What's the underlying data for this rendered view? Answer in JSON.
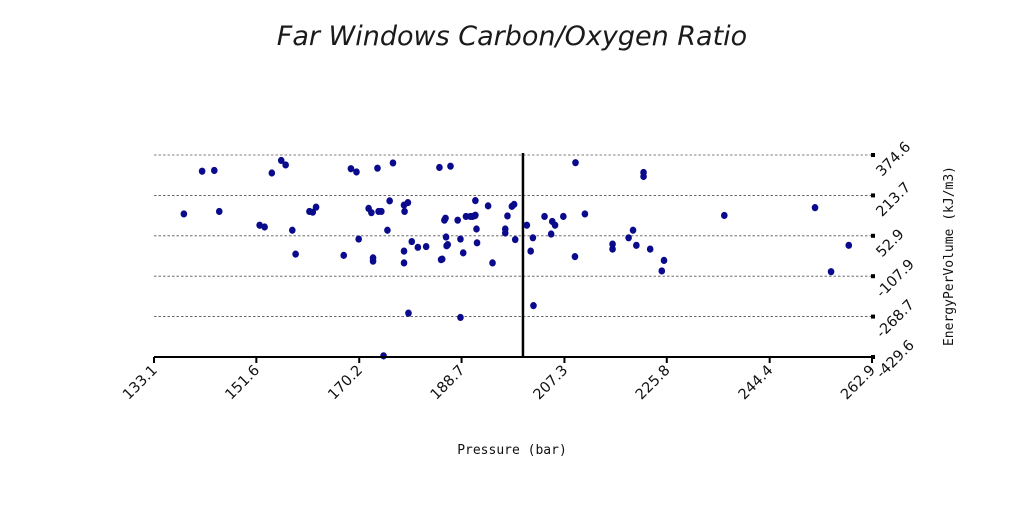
{
  "chart_data": {
    "type": "scatter",
    "title": "Far Windows Carbon/Oxygen Ratio",
    "xlabel": "Pressure (bar)",
    "ylabel": "EnergyPerVolume (kJ/m3)",
    "x_ticks": [
      "133.1",
      "151.6",
      "170.2",
      "188.7",
      "207.3",
      "225.8",
      "244.4",
      "262.9"
    ],
    "y_ticks": [
      "374.6",
      "213.7",
      "52.9",
      "-107.9",
      "-268.7",
      "-429.6"
    ],
    "xlim": [
      133.1,
      262.9
    ],
    "ylim": [
      -429.6,
      374.6
    ],
    "grid": "horizontal dashed",
    "reference_line_x": 199.8,
    "point_color": "#0a0a8c",
    "points": [
      [
        138.5,
        140
      ],
      [
        141.8,
        310
      ],
      [
        144.0,
        313
      ],
      [
        144.9,
        150
      ],
      [
        152.2,
        95
      ],
      [
        153.1,
        88
      ],
      [
        154.4,
        303
      ],
      [
        156.1,
        353
      ],
      [
        156.9,
        335
      ],
      [
        158.1,
        75
      ],
      [
        158.7,
        -20
      ],
      [
        161.2,
        150
      ],
      [
        161.8,
        147
      ],
      [
        162.4,
        167
      ],
      [
        168.7,
        320
      ],
      [
        169.7,
        307
      ],
      [
        167.4,
        -25
      ],
      [
        170.1,
        40
      ],
      [
        171.9,
        162
      ],
      [
        172.4,
        145
      ],
      [
        172.7,
        -35
      ],
      [
        172.7,
        -48
      ],
      [
        173.5,
        322
      ],
      [
        173.7,
        150
      ],
      [
        174.2,
        150
      ],
      [
        175.7,
        192
      ],
      [
        175.3,
        75
      ],
      [
        174.6,
        -425
      ],
      [
        176.3,
        343
      ],
      [
        178.3,
        175
      ],
      [
        178.4,
        150
      ],
      [
        178.3,
        -8
      ],
      [
        178.3,
        -55
      ],
      [
        179.0,
        185
      ],
      [
        179.7,
        30
      ],
      [
        179.1,
        -255
      ],
      [
        180.8,
        7
      ],
      [
        182.3,
        10
      ],
      [
        184.7,
        325
      ],
      [
        185.6,
        115
      ],
      [
        185.8,
        123
      ],
      [
        185.9,
        48
      ],
      [
        186.2,
        18
      ],
      [
        186.0,
        13
      ],
      [
        185.2,
        -40
      ],
      [
        185.0,
        -42
      ],
      [
        186.7,
        330
      ],
      [
        188.0,
        115
      ],
      [
        188.5,
        40
      ],
      [
        189.0,
        -15
      ],
      [
        188.5,
        -272
      ],
      [
        189.5,
        130
      ],
      [
        190.3,
        130
      ],
      [
        190.7,
        130
      ],
      [
        191.1,
        133
      ],
      [
        191.2,
        193
      ],
      [
        191.2,
        135
      ],
      [
        191.4,
        80
      ],
      [
        191.5,
        25
      ],
      [
        193.5,
        172
      ],
      [
        194.3,
        -55
      ],
      [
        196.6,
        80
      ],
      [
        196.6,
        64
      ],
      [
        197.0,
        132
      ],
      [
        197.8,
        170
      ],
      [
        198.2,
        178
      ],
      [
        198.4,
        38
      ],
      [
        200.5,
        95
      ],
      [
        201.2,
        -8
      ],
      [
        201.6,
        45
      ],
      [
        201.7,
        -225
      ],
      [
        203.7,
        130
      ],
      [
        204.9,
        60
      ],
      [
        205.1,
        110
      ],
      [
        205.6,
        95
      ],
      [
        207.1,
        130
      ],
      [
        209.3,
        344
      ],
      [
        209.2,
        -30
      ],
      [
        211.0,
        140
      ],
      [
        216.0,
        20
      ],
      [
        216.0,
        0
      ],
      [
        218.9,
        45
      ],
      [
        219.7,
        75
      ],
      [
        220.3,
        15
      ],
      [
        221.6,
        305
      ],
      [
        221.6,
        289
      ],
      [
        222.8,
        0
      ],
      [
        224.9,
        -87
      ],
      [
        225.3,
        -45
      ],
      [
        236.2,
        134
      ],
      [
        252.6,
        165
      ],
      [
        255.5,
        -90
      ],
      [
        258.7,
        15
      ]
    ]
  }
}
